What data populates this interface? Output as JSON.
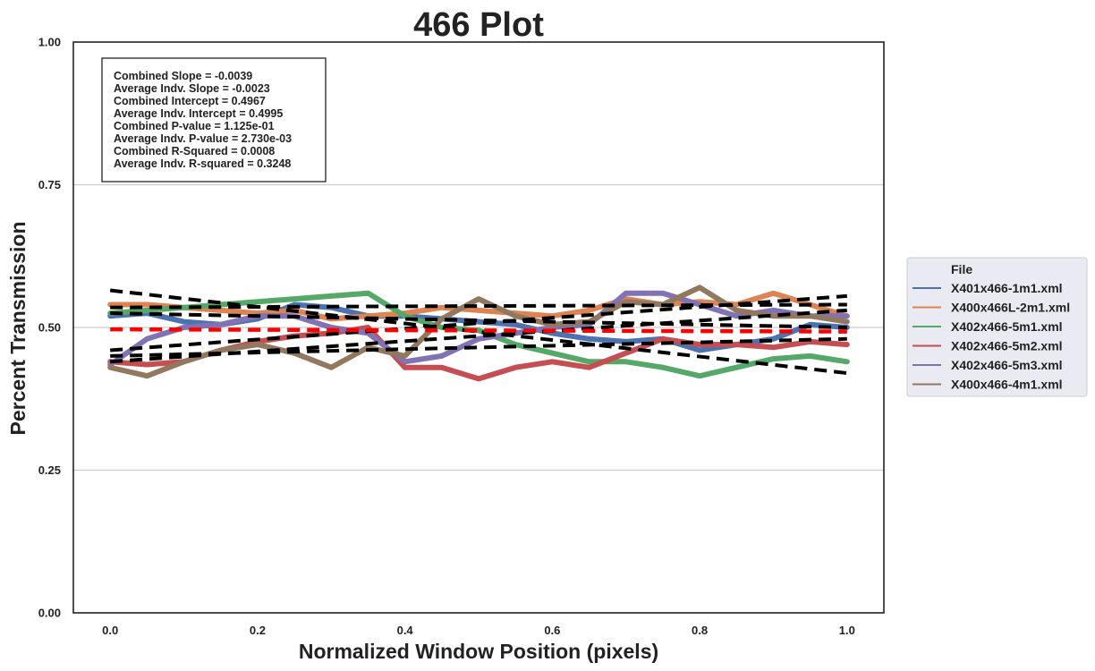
{
  "chart_data": {
    "type": "line",
    "title": "466 Plot",
    "xlabel": "Normalized Window Position (pixels)",
    "ylabel": "Percent Transmission",
    "xlim": [
      -0.05,
      1.05
    ],
    "ylim": [
      0.0,
      1.0
    ],
    "xticks": [
      0.0,
      0.2,
      0.4,
      0.6,
      0.8,
      1.0
    ],
    "xtick_labels": [
      "0.0",
      "0.2",
      "0.4",
      "0.6",
      "0.8",
      "1.0"
    ],
    "yticks": [
      0.0,
      0.25,
      0.5,
      0.75,
      1.0
    ],
    "ytick_labels": [
      "0.00",
      "0.25",
      "0.50",
      "0.75",
      "1.00"
    ],
    "grid": "horizontal",
    "legend": {
      "title": "File",
      "placement": "outside-right"
    },
    "stats": [
      "Combined Slope = -0.0039",
      "Average Indv. Slope = -0.0023",
      "Combined Intercept = 0.4967",
      "Average Indv. Intercept = 0.4995",
      "Combined P-value = 1.125e-01",
      "Average Indv. P-value = 2.730e-03",
      "Combined R-Squared = 0.0008",
      "Average Indv. R-squared = 0.3248"
    ],
    "x": [
      0.0,
      0.05,
      0.1,
      0.15,
      0.2,
      0.25,
      0.3,
      0.35,
      0.4,
      0.45,
      0.5,
      0.55,
      0.6,
      0.65,
      0.7,
      0.75,
      0.8,
      0.85,
      0.9,
      0.95,
      1.0
    ],
    "series": [
      {
        "name": "X401x466-1m1.xml",
        "color": "#4C72B0",
        "values": [
          0.52,
          0.525,
          0.51,
          0.505,
          0.515,
          0.54,
          0.535,
          0.52,
          0.52,
          0.515,
          0.51,
          0.505,
          0.49,
          0.48,
          0.475,
          0.48,
          0.46,
          0.47,
          0.48,
          0.505,
          0.5
        ]
      },
      {
        "name": "X400x466L-2m1.xml",
        "color": "#DD8452",
        "values": [
          0.54,
          0.54,
          0.535,
          0.53,
          0.525,
          0.53,
          0.515,
          0.52,
          0.525,
          0.535,
          0.53,
          0.525,
          0.52,
          0.53,
          0.55,
          0.54,
          0.545,
          0.54,
          0.56,
          0.54,
          0.52
        ]
      },
      {
        "name": "X402x466-5m1.xml",
        "color": "#55A868",
        "values": [
          0.525,
          0.53,
          0.535,
          0.54,
          0.545,
          0.55,
          0.555,
          0.56,
          0.52,
          0.5,
          0.495,
          0.47,
          0.455,
          0.44,
          0.44,
          0.43,
          0.415,
          0.43,
          0.445,
          0.45,
          0.44
        ]
      },
      {
        "name": "X402x466-5m2.xml",
        "color": "#C44E52",
        "values": [
          0.44,
          0.435,
          0.44,
          0.46,
          0.475,
          0.485,
          0.49,
          0.5,
          0.43,
          0.43,
          0.41,
          0.43,
          0.44,
          0.43,
          0.455,
          0.48,
          0.47,
          0.47,
          0.465,
          0.475,
          0.47
        ]
      },
      {
        "name": "X402x466-5m3.xml",
        "color": "#8172B3",
        "values": [
          0.435,
          0.48,
          0.5,
          0.505,
          0.52,
          0.52,
          0.5,
          0.49,
          0.44,
          0.45,
          0.48,
          0.49,
          0.5,
          0.505,
          0.56,
          0.56,
          0.54,
          0.52,
          0.53,
          0.52,
          0.52
        ]
      },
      {
        "name": "X400x466-4m1.xml",
        "color": "#937860",
        "values": [
          0.43,
          0.415,
          0.44,
          0.46,
          0.47,
          0.455,
          0.43,
          0.465,
          0.45,
          0.515,
          0.55,
          0.52,
          0.505,
          0.51,
          0.545,
          0.54,
          0.57,
          0.53,
          0.52,
          0.52,
          0.51
        ]
      }
    ],
    "fit_lines": [
      {
        "style": "black-dashed",
        "values": [
          0.525,
          0.5
        ]
      },
      {
        "style": "black-dashed",
        "values": [
          0.535,
          0.54
        ]
      },
      {
        "style": "black-dashed",
        "values": [
          0.565,
          0.42
        ]
      },
      {
        "style": "black-dashed",
        "values": [
          0.45,
          0.48
        ]
      },
      {
        "style": "black-dashed",
        "values": [
          0.46,
          0.555
        ]
      },
      {
        "style": "black-dashed",
        "values": [
          0.44,
          0.53
        ]
      },
      {
        "style": "red-dashed",
        "values": [
          0.4967,
          0.4928
        ]
      }
    ]
  }
}
